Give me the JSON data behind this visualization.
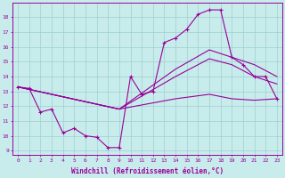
{
  "background_color": "#c8ecec",
  "line_color": "#990099",
  "xlabel": "Windchill (Refroidissement éolien,°C)",
  "xlim": [
    -0.5,
    23.5
  ],
  "ylim": [
    8.7,
    19.0
  ],
  "yticks": [
    9,
    10,
    11,
    12,
    13,
    14,
    15,
    16,
    17,
    18
  ],
  "xticks": [
    0,
    1,
    2,
    3,
    4,
    5,
    6,
    7,
    8,
    9,
    10,
    11,
    12,
    13,
    14,
    15,
    16,
    17,
    18,
    19,
    20,
    21,
    22,
    23
  ],
  "curve1_x": [
    0,
    1,
    2,
    3,
    4,
    5,
    6,
    7,
    8,
    9,
    10,
    11,
    12,
    13,
    14,
    15,
    16,
    17,
    18,
    19,
    20,
    21,
    22,
    23
  ],
  "curve1_y": [
    13.3,
    13.2,
    11.6,
    11.8,
    10.2,
    10.5,
    10.0,
    9.9,
    9.2,
    9.2,
    14.0,
    12.8,
    13.0,
    16.3,
    16.6,
    17.2,
    18.2,
    18.5,
    18.5,
    15.3,
    14.8,
    14.0,
    14.0,
    12.5
  ],
  "curve2_x": [
    0,
    9,
    14,
    17,
    19,
    21,
    23
  ],
  "curve2_y": [
    13.3,
    11.8,
    12.5,
    12.8,
    12.5,
    12.4,
    12.5
  ],
  "curve3_x": [
    0,
    9,
    14,
    17,
    19,
    21,
    23
  ],
  "curve3_y": [
    13.3,
    11.8,
    14.0,
    15.2,
    14.8,
    14.0,
    13.5
  ],
  "curve4_x": [
    0,
    9,
    14,
    17,
    19,
    21,
    23
  ],
  "curve4_y": [
    13.3,
    11.8,
    14.5,
    15.8,
    15.3,
    14.8,
    14.0
  ]
}
